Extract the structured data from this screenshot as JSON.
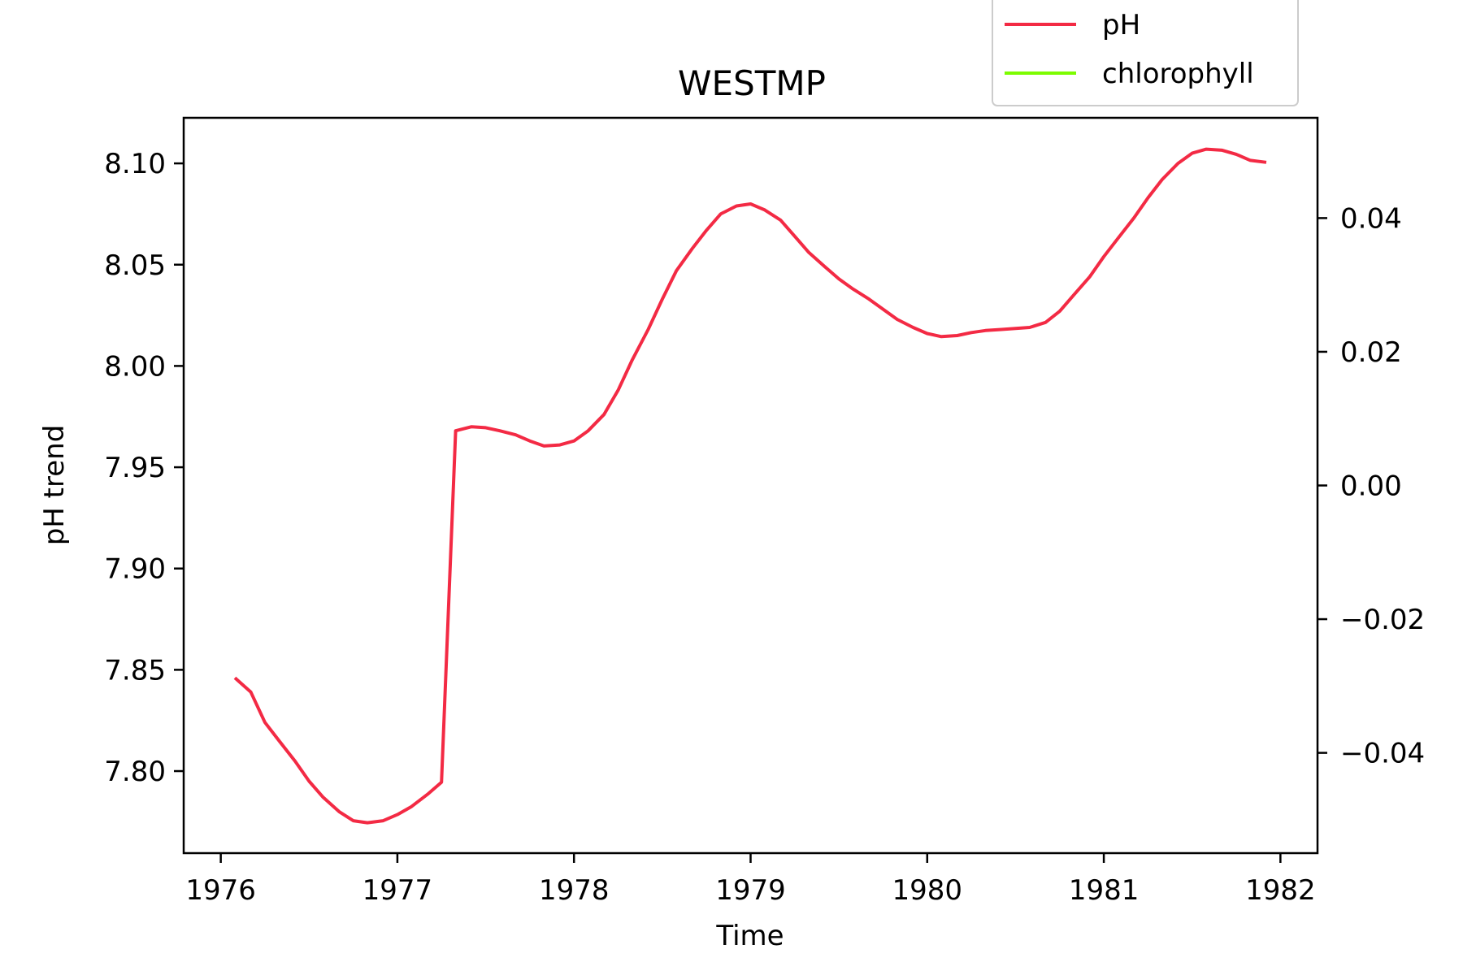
{
  "chart_data": {
    "type": "line",
    "title": "WESTMP",
    "xlabel": "Time",
    "ylabel": "pH trend",
    "y2label": "",
    "xlim": [
      1975.79,
      1982.21
    ],
    "ylim": [
      7.7595,
      8.1225
    ],
    "y2lim": [
      -0.055,
      0.055
    ],
    "x_ticks": [
      1976,
      1977,
      1978,
      1979,
      1980,
      1981,
      1982
    ],
    "x_tick_labels": [
      "1976",
      "1977",
      "1978",
      "1979",
      "1980",
      "1981",
      "1982"
    ],
    "y_ticks": [
      7.8,
      7.85,
      7.9,
      7.95,
      8.0,
      8.05,
      8.1
    ],
    "y_tick_labels": [
      "7.80",
      "7.85",
      "7.90",
      "7.95",
      "8.00",
      "8.05",
      "8.10"
    ],
    "y2_ticks": [
      -0.04,
      -0.02,
      0.0,
      0.02,
      0.04
    ],
    "y2_tick_labels": [
      "−0.04",
      "−0.02",
      "0.00",
      "0.02",
      "0.04"
    ],
    "grid": false,
    "legend_position": "top-right",
    "series": [
      {
        "name": "pH",
        "color": "#f32a44",
        "axis": "left",
        "x": [
          1976.08,
          1976.17,
          1976.25,
          1976.33,
          1976.42,
          1976.5,
          1976.58,
          1976.67,
          1976.75,
          1976.83,
          1976.92,
          1977.0,
          1977.08,
          1977.17,
          1977.25,
          1977.33,
          1977.42,
          1977.5,
          1977.58,
          1977.67,
          1977.75,
          1977.83,
          1977.92,
          1978.0,
          1978.08,
          1978.17,
          1978.25,
          1978.33,
          1978.42,
          1978.5,
          1978.58,
          1978.67,
          1978.75,
          1978.83,
          1978.92,
          1979.0,
          1979.08,
          1979.17,
          1979.25,
          1979.33,
          1979.42,
          1979.5,
          1979.58,
          1979.67,
          1979.75,
          1979.83,
          1979.92,
          1980.0,
          1980.08,
          1980.17,
          1980.25,
          1980.33,
          1980.42,
          1980.5,
          1980.58,
          1980.67,
          1980.75,
          1980.83,
          1980.92,
          1981.0,
          1981.08,
          1981.17,
          1981.25,
          1981.33,
          1981.42,
          1981.5,
          1981.58,
          1981.67,
          1981.75,
          1981.83,
          1981.92
        ],
        "values": [
          7.846,
          7.839,
          7.824,
          7.815,
          7.805,
          7.795,
          7.787,
          7.78,
          7.7755,
          7.7745,
          7.7755,
          7.7785,
          7.7825,
          7.7885,
          7.7945,
          7.968,
          7.97,
          7.9695,
          7.968,
          7.966,
          7.963,
          7.9605,
          7.961,
          7.963,
          7.968,
          7.976,
          7.988,
          8.003,
          8.018,
          8.033,
          8.047,
          8.058,
          8.067,
          8.075,
          8.079,
          8.08,
          8.077,
          8.072,
          8.064,
          8.056,
          8.049,
          8.043,
          8.038,
          8.033,
          8.028,
          8.023,
          8.019,
          8.016,
          8.0145,
          8.015,
          8.0165,
          8.0175,
          8.018,
          8.0185,
          8.019,
          8.0215,
          8.027,
          8.035,
          8.044,
          8.054,
          8.063,
          8.073,
          8.083,
          8.092,
          8.1,
          8.105,
          8.107,
          8.1065,
          8.1045,
          8.1015,
          8.1005
        ]
      },
      {
        "name": "chlorophyll",
        "color": "#7cfc00",
        "axis": "right",
        "x": [],
        "values": []
      }
    ]
  }
}
